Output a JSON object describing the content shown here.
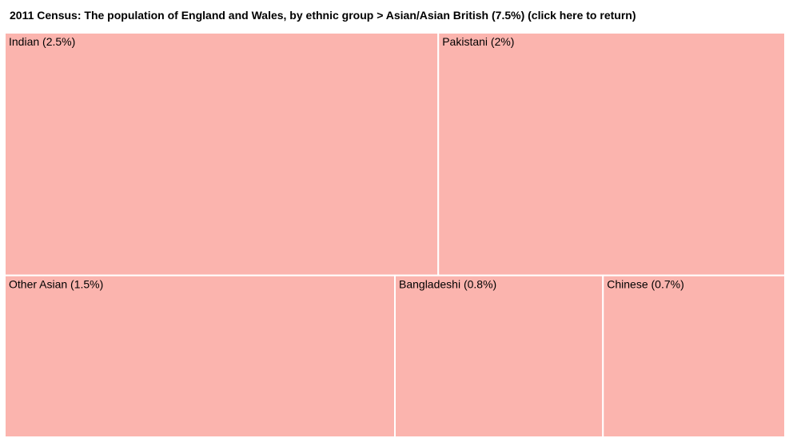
{
  "chart_data": {
    "type": "treemap",
    "title": "2011 Census: The population of England and Wales, by ethnic group > Asian/Asian British (7.5%) (click here to return)",
    "categories": [
      "Indian (2.5%)",
      "Pakistani (2%)",
      "Other Asian (1.5%)",
      "Bangladeshi (0.8%)",
      "Chinese (0.7%)"
    ],
    "values": [
      2.5,
      2,
      1.5,
      0.8,
      0.7
    ],
    "color": "#fbb4ae"
  }
}
